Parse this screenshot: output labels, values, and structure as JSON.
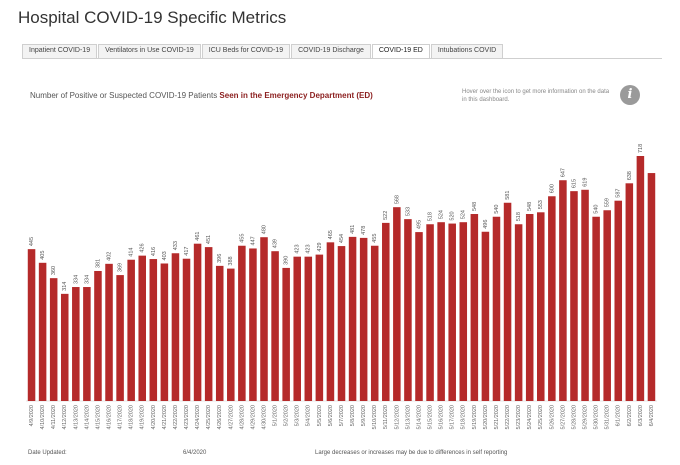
{
  "page": {
    "title": "Hospital COVID-19 Specific Metrics"
  },
  "tabs": [
    {
      "label": "Inpatient COVID-19",
      "active": false
    },
    {
      "label": "Ventilators in Use COVID-19",
      "active": false
    },
    {
      "label": "ICU Beds for COVID-19",
      "active": false
    },
    {
      "label": "COVID-19 Discharge",
      "active": false
    },
    {
      "label": "COVID-19 ED",
      "active": true
    },
    {
      "label": "Intubations COVID",
      "active": false
    }
  ],
  "subtitle": {
    "prefix": "Number of Positive or Suspected COVID-19 Patients ",
    "highlight": "Seen in the Emergency Department (ED)"
  },
  "hover_note": "Hover over the icon to get more information on the data in this dashboard.",
  "info_icon": {
    "icon": "info-icon",
    "glyph": "i"
  },
  "footer": {
    "date_updated_label": "Date Updated:",
    "date_updated_value": "6/4/2020",
    "note": "Large decreases or increases may be due to differences in self reporting"
  },
  "colors": {
    "bar": "#b52a2a",
    "accent": "#8b1e1e"
  },
  "chart_data": {
    "type": "bar",
    "categories": [
      "4/9/2020",
      "4/10/2020",
      "4/11/2020",
      "4/12/2020",
      "4/13/2020",
      "4/14/2020",
      "4/15/2020",
      "4/16/2020",
      "4/17/2020",
      "4/18/2020",
      "4/19/2020",
      "4/20/2020",
      "4/21/2020",
      "4/22/2020",
      "4/23/2020",
      "4/24/2020",
      "4/25/2020",
      "4/26/2020",
      "4/27/2020",
      "4/28/2020",
      "4/29/2020",
      "4/30/2020",
      "5/1/2020",
      "5/2/2020",
      "5/3/2020",
      "5/4/2020",
      "5/5/2020",
      "5/6/2020",
      "5/7/2020",
      "5/8/2020",
      "5/9/2020",
      "5/10/2020",
      "5/11/2020",
      "5/12/2020",
      "5/13/2020",
      "5/14/2020",
      "5/15/2020",
      "5/16/2020",
      "5/17/2020",
      "5/18/2020",
      "5/19/2020",
      "5/20/2020",
      "5/21/2020",
      "5/22/2020",
      "5/23/2020",
      "5/24/2020",
      "5/25/2020",
      "5/26/2020",
      "5/27/2020",
      "5/28/2020",
      "5/29/2020",
      "5/30/2020",
      "5/31/2020",
      "6/1/2020",
      "6/2/2020",
      "6/3/2020",
      "6/4/2020"
    ],
    "values": [
      445,
      405,
      360,
      314,
      334,
      334,
      381,
      402,
      369,
      414,
      426,
      416,
      403,
      433,
      417,
      461,
      451,
      396,
      388,
      455,
      447,
      480,
      439,
      390,
      423,
      423,
      429,
      465,
      454,
      481,
      478,
      455,
      522,
      568,
      533,
      495,
      518,
      524,
      520,
      524,
      548,
      496,
      540,
      581,
      518,
      548,
      553,
      600,
      647,
      615,
      619,
      540,
      559,
      587,
      638,
      718,
      668
    ],
    "value_labels": [
      "445",
      "405",
      "360",
      "314",
      "334",
      "334",
      "381",
      "402",
      "369",
      "414",
      "426",
      "416",
      "403",
      "433",
      "417",
      "461",
      "451",
      "396",
      "388",
      "455",
      "447",
      "480",
      "439",
      "390",
      "423",
      "423",
      "429",
      "465",
      "454",
      "481",
      "478",
      "455",
      "522",
      "568",
      "533",
      "495",
      "518",
      "524",
      "520",
      "524",
      "548",
      "496",
      "540",
      "581",
      "518",
      "548",
      "553",
      "600",
      "647",
      "615",
      "619",
      "540",
      "559",
      "587",
      "638",
      "718",
      ""
    ],
    "ylim": [
      0,
      740
    ],
    "grid": false
  }
}
